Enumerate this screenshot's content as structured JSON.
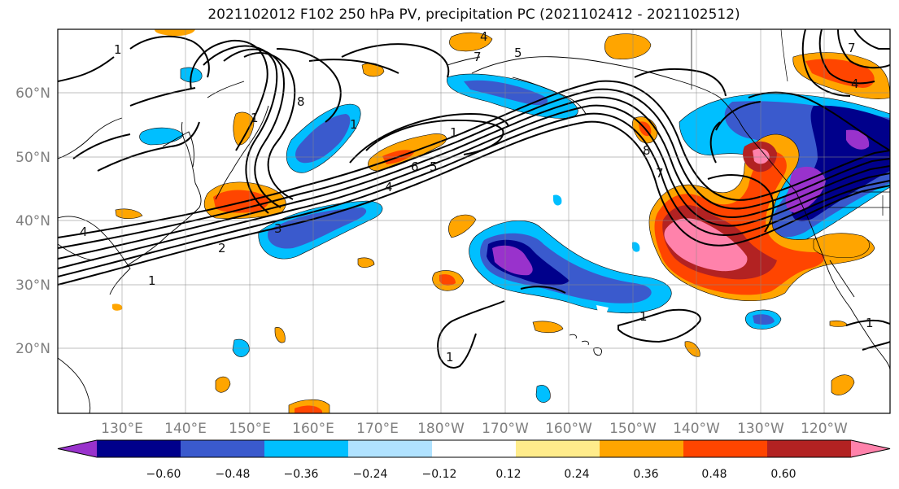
{
  "title": "2021102012 F102 250 hPa PV, precipitation PC (2021102412 - 2021102512)",
  "lat_labels": [
    "60°N",
    "50°N",
    "40°N",
    "30°N",
    "20°N"
  ],
  "lon_labels": [
    "130°E",
    "140°E",
    "150°E",
    "160°E",
    "170°E",
    "180°W",
    "170°W",
    "160°W",
    "150°W",
    "140°W",
    "130°W",
    "120°W"
  ],
  "colorbar": {
    "colors": [
      "#9932cc",
      "#00008b",
      "#3a5acd",
      "#00bfff",
      "#b0e2ff",
      "#ffffff",
      "#ffec8b",
      "#ffa500",
      "#ff4500",
      "#b22222",
      "#ff82ab"
    ],
    "tick_labels": [
      "−0.60",
      "−0.48",
      "−0.36",
      "−0.24",
      "−0.12",
      "0.12",
      "0.24",
      "0.36",
      "0.48",
      "0.60"
    ]
  },
  "contour_labels": [
    "1",
    "2",
    "3",
    "4",
    "5",
    "6",
    "7",
    "8",
    "1",
    "1",
    "1",
    "1",
    "4",
    "5",
    "7",
    "8",
    "4",
    "1",
    "1",
    "1",
    "4",
    "7"
  ]
}
